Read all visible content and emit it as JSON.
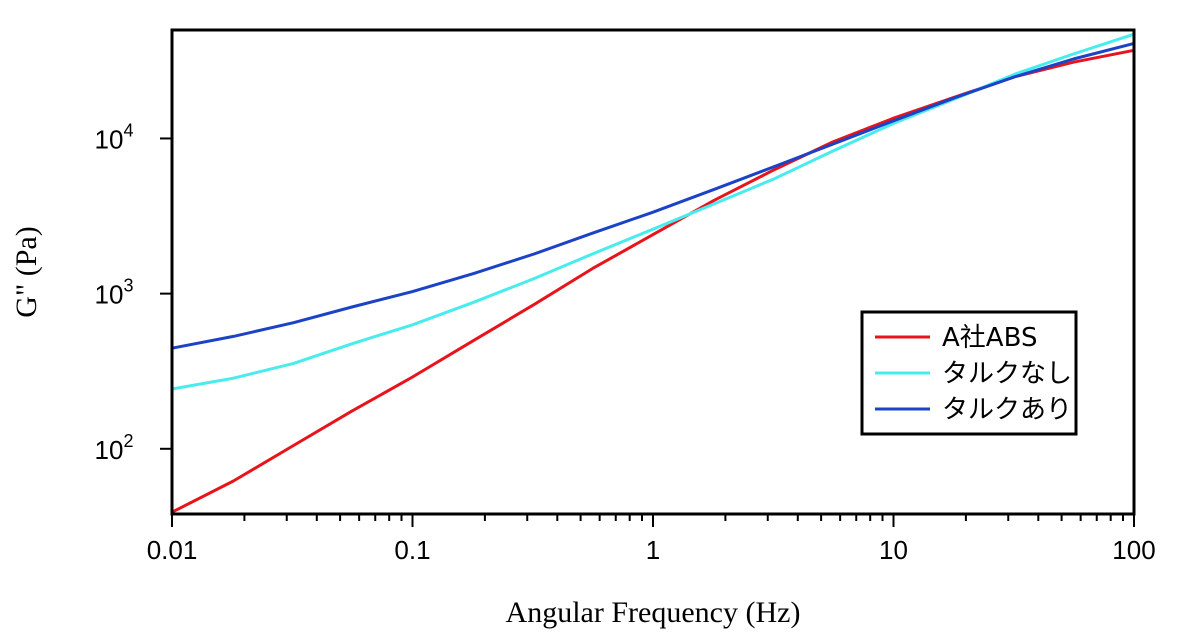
{
  "chart_data": {
    "type": "line",
    "xlabel": "Angular Frequency (Hz)",
    "ylabel": "G\" (Pa)",
    "x_scale": "log",
    "y_scale": "log",
    "xlim": [
      0.01,
      100
    ],
    "ylim": [
      38,
      50000
    ],
    "grid": false,
    "legend_position": "bottom-right",
    "x_tick_labels": [
      {
        "value": 0.01,
        "label": "0.01"
      },
      {
        "value": 0.1,
        "label": "0.1"
      },
      {
        "value": 1,
        "label": "1"
      },
      {
        "value": 10,
        "label": "10"
      },
      {
        "value": 100,
        "label": "100"
      }
    ],
    "y_tick_labels": [
      {
        "value": 100,
        "base": "10",
        "exp": "2"
      },
      {
        "value": 1000,
        "base": "10",
        "exp": "3"
      },
      {
        "value": 10000,
        "base": "10",
        "exp": "4"
      }
    ],
    "series": [
      {
        "name": "A社ABS",
        "color": "#e8141b",
        "x": [
          0.01,
          0.018,
          0.032,
          0.056,
          0.1,
          0.18,
          0.32,
          0.56,
          1,
          1.8,
          3.2,
          5.6,
          10,
          18,
          32,
          56,
          100
        ],
        "y": [
          39,
          62,
          105,
          175,
          290,
          500,
          850,
          1450,
          2400,
          4000,
          6300,
          9500,
          13500,
          18500,
          25000,
          31000,
          37000
        ]
      },
      {
        "name": "タルクなし",
        "color": "#48ecec",
        "x": [
          0.01,
          0.018,
          0.032,
          0.056,
          0.1,
          0.18,
          0.32,
          0.56,
          1,
          1.8,
          3.2,
          5.6,
          10,
          18,
          32,
          56,
          100
        ],
        "y": [
          243,
          285,
          355,
          475,
          630,
          880,
          1250,
          1800,
          2600,
          3800,
          5500,
          8300,
          12500,
          18000,
          26000,
          35000,
          47000
        ]
      },
      {
        "name": "タルクあり",
        "color": "#1c43c6",
        "x": [
          0.01,
          0.018,
          0.032,
          0.056,
          0.1,
          0.18,
          0.32,
          0.56,
          1,
          1.8,
          3.2,
          5.6,
          10,
          18,
          32,
          56,
          100
        ],
        "y": [
          445,
          530,
          650,
          820,
          1030,
          1350,
          1800,
          2450,
          3350,
          4700,
          6600,
          9200,
          13000,
          18300,
          25000,
          32500,
          41000
        ]
      }
    ]
  }
}
